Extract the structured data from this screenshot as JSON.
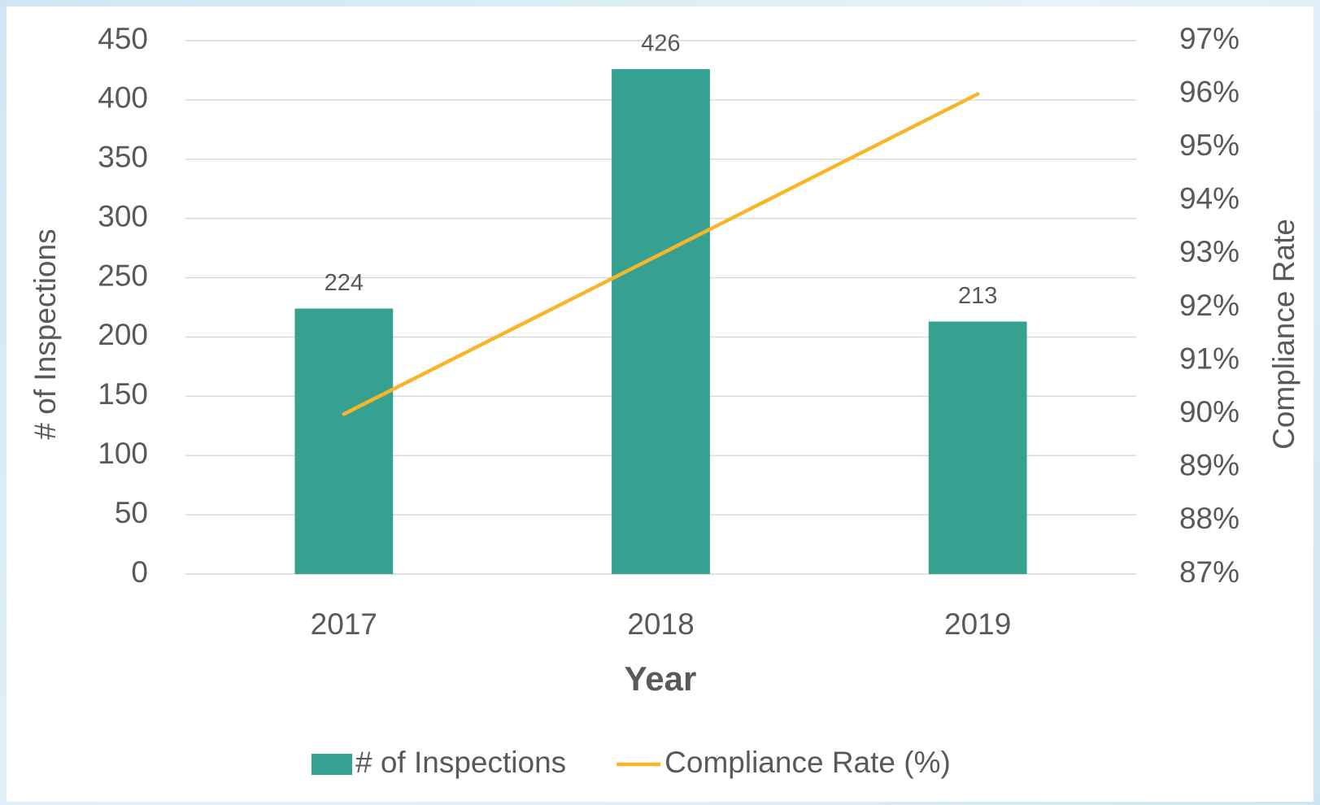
{
  "chart_data": {
    "type": "bar",
    "xlabel": "Year",
    "ylabel": "# of Inspections",
    "y2label": "Compliance Rate",
    "categories": [
      "2017",
      "2018",
      "2019"
    ],
    "series": [
      {
        "name": "# of Inspections",
        "type": "bar",
        "color": "#36a190",
        "values": [
          224,
          426,
          213
        ]
      },
      {
        "name": "Compliance Rate (%)",
        "type": "line",
        "color": "#f9b52a",
        "values": [
          90,
          93,
          96
        ],
        "axis": "y2"
      }
    ],
    "ylim": [
      0,
      450
    ],
    "yticks": [
      0,
      50,
      100,
      150,
      200,
      250,
      300,
      350,
      400,
      450
    ],
    "y2lim": [
      87,
      97
    ],
    "y2ticks": [
      {
        "value": 87,
        "label": "87%"
      },
      {
        "value": 88,
        "label": "88%"
      },
      {
        "value": 89,
        "label": "89%"
      },
      {
        "value": 90,
        "label": "90%"
      },
      {
        "value": 91,
        "label": "91%"
      },
      {
        "value": 92,
        "label": "92%"
      },
      {
        "value": 93,
        "label": "93%"
      },
      {
        "value": 94,
        "label": "94%"
      },
      {
        "value": 95,
        "label": "95%"
      },
      {
        "value": 96,
        "label": "96%"
      },
      {
        "value": 97,
        "label": "97%"
      }
    ],
    "grid": true,
    "legend": "bottom"
  }
}
